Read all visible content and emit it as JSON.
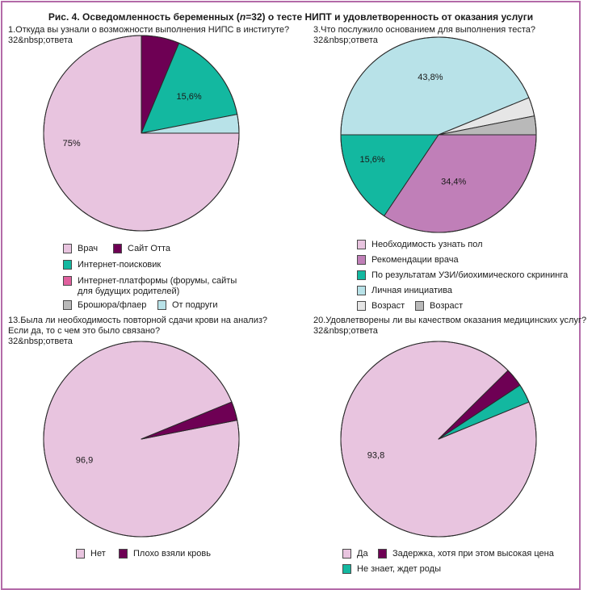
{
  "figure": {
    "title_prefix": "Рис. 4. Осведомленность беременных (",
    "title_n": "n",
    "title_suffix": "=32) о тесте НИПТ и удовлетворенность от оказания услуги",
    "border_color": "#b36aa8"
  },
  "colors": {
    "pink_light": "#e8c4df",
    "purple_dark": "#6e0054",
    "teal": "#13b8a0",
    "light_blue": "#b8e2e8",
    "magenta": "#e0609e",
    "grey": "#b9b9b9",
    "light_grey": "#e6e6e6",
    "orchid": "#c07fb8"
  },
  "chart_data": [
    {
      "type": "pie",
      "title": "1.Откуда вы узнали о возможности выполнения НИПС в институте?",
      "subtitle": "32&nbsp;ответа",
      "start": "12 o'clock, clockwise",
      "slices": [
        {
          "label": "Сайт Отта",
          "value": 6.3,
          "color": "#6e0054",
          "data_label": ""
        },
        {
          "label": "Интернет-поисковик",
          "value": 15.6,
          "color": "#13b8a0",
          "data_label": "15,6%"
        },
        {
          "label": "От подруги",
          "value": 3.1,
          "color": "#b8e2e8",
          "data_label": ""
        },
        {
          "label": "Врач",
          "value": 75,
          "color": "#e8c4df",
          "data_label": "75%"
        },
        {
          "label": "Интернет-платформы (форумы, сайты\nдля будущих родителей)",
          "value": 0,
          "color": "#e0609e",
          "data_label": ""
        },
        {
          "label": "Брошюра/флаер",
          "value": 0,
          "color": "#b9b9b9",
          "data_label": ""
        }
      ],
      "legend": [
        {
          "label": "Врач",
          "color": "#e8c4df"
        },
        {
          "label": "Сайт Отта",
          "color": "#6e0054"
        },
        {
          "label": "Интернет-поисковик",
          "color": "#13b8a0"
        },
        {
          "label": "Интернет-платформы (форумы, сайты\nдля будущих родителей)",
          "color": "#e0609e"
        },
        {
          "label": "Брошюра/флаер",
          "color": "#b9b9b9"
        },
        {
          "label": "От подруги",
          "color": "#b8e2e8"
        }
      ]
    },
    {
      "type": "pie",
      "title": "3.Что послужило основанием для выполнения теста?",
      "subtitle": "32&nbsp;ответа",
      "start": "3 o'clock, clockwise",
      "slices": [
        {
          "label": "Рекомендации врача",
          "value": 34.4,
          "color": "#c07fb8",
          "data_label": "34,4%"
        },
        {
          "label": "По результатам УЗИ/биохимического скрининга",
          "value": 15.6,
          "color": "#13b8a0",
          "data_label": "15,6%"
        },
        {
          "label": "Личная инициатива",
          "value": 43.8,
          "color": "#b8e2e8",
          "data_label": "43,8%"
        },
        {
          "label": "Возраст",
          "value": 3.1,
          "color": "#e6e6e6",
          "data_label": ""
        },
        {
          "label": "Возраст",
          "value": 3.1,
          "color": "#b9b9b9",
          "data_label": ""
        },
        {
          "label": "Необходимость узнать пол",
          "value": 0,
          "color": "#e8c4df",
          "data_label": ""
        }
      ],
      "legend": [
        {
          "label": "Необходимость узнать пол",
          "color": "#e8c4df"
        },
        {
          "label": "Рекомендации врача",
          "color": "#c07fb8"
        },
        {
          "label": "По результатам УЗИ/биохимического скрининга",
          "color": "#13b8a0"
        },
        {
          "label": "Личная инициатива",
          "color": "#b8e2e8"
        },
        {
          "label": "Возраст",
          "color": "#e6e6e6"
        },
        {
          "label": "Возраст",
          "color": "#b9b9b9"
        }
      ]
    },
    {
      "type": "pie",
      "title": "13.Была ли необходимость  повторной сдачи крови на анализ?\nЕсли да, то с чем это было связано?",
      "subtitle": "32&nbsp;ответа",
      "start": "3 o'clock, clockwise",
      "slices": [
        {
          "label": "Нет",
          "value": 96.9,
          "color": "#e8c4df",
          "data_label": "96,9"
        },
        {
          "label": "Плохо взяли кровь",
          "value": 3.1,
          "color": "#6e0054",
          "data_label": ""
        }
      ],
      "legend": [
        {
          "label": "Нет",
          "color": "#e8c4df"
        },
        {
          "label": "Плохо взяли кровь",
          "color": "#6e0054"
        }
      ]
    },
    {
      "type": "pie",
      "title": "20.Удовлетворены ли вы качеством оказания медицинских услуг?",
      "subtitle": "32&nbsp;ответа",
      "start": "3 o'clock, clockwise",
      "slices": [
        {
          "label": "Да",
          "value": 93.8,
          "color": "#e8c4df",
          "data_label": "93,8"
        },
        {
          "label": "Задержка, хотя при этом высокая цена",
          "value": 3.1,
          "color": "#6e0054",
          "data_label": ""
        },
        {
          "label": "Не знает, ждет роды",
          "value": 3.1,
          "color": "#13b8a0",
          "data_label": ""
        }
      ],
      "legend": [
        {
          "label": "Да",
          "color": "#e8c4df"
        },
        {
          "label": "Задержка, хотя при этом высокая цена",
          "color": "#6e0054"
        },
        {
          "label": "Не знает, ждет роды",
          "color": "#13b8a0"
        }
      ]
    }
  ]
}
